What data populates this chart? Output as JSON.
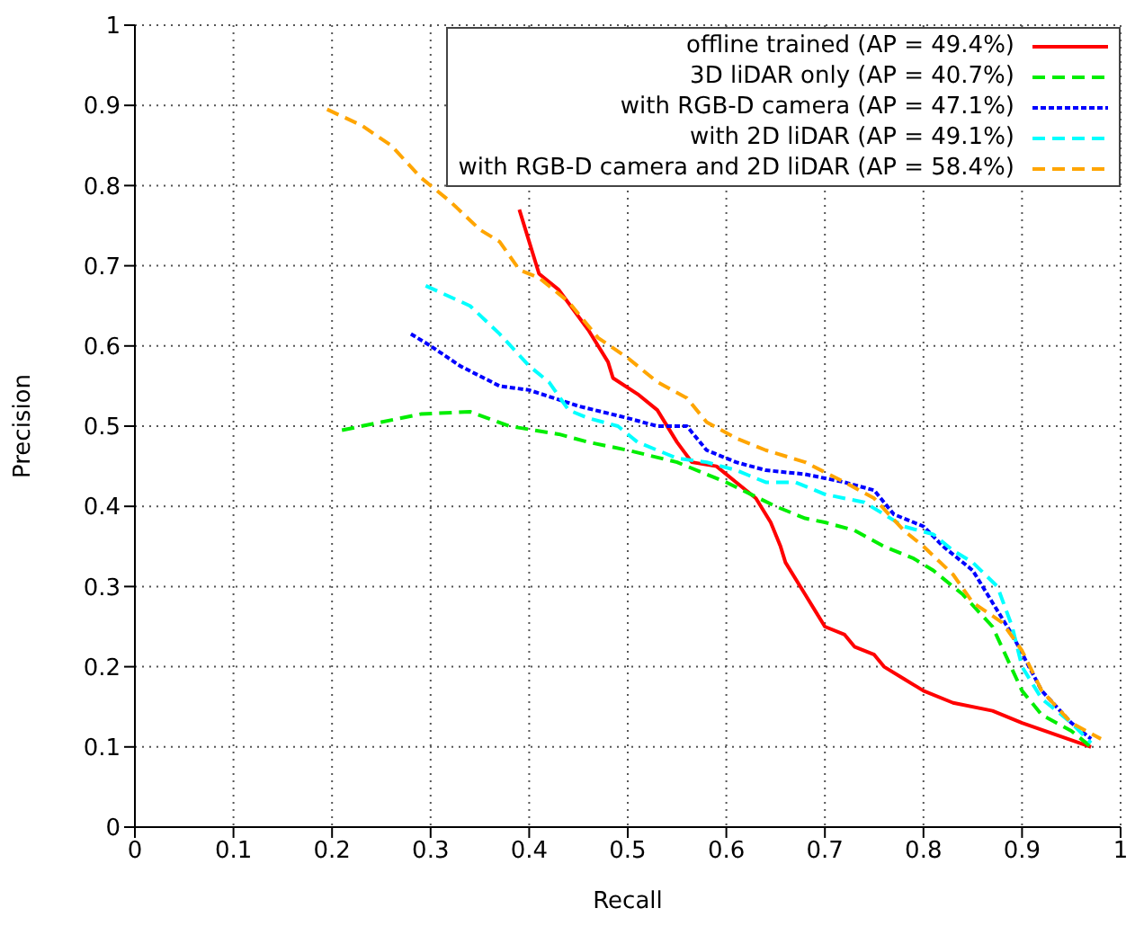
{
  "chart_data": {
    "type": "line",
    "xlabel": "Recall",
    "ylabel": "Precision",
    "xlim": [
      0,
      1
    ],
    "ylim": [
      0,
      1
    ],
    "xticks": [
      0,
      0.1,
      0.2,
      0.3,
      0.4,
      0.5,
      0.6,
      0.7,
      0.8,
      0.9,
      1
    ],
    "yticks": [
      0,
      0.1,
      0.2,
      0.3,
      0.4,
      0.5,
      0.6,
      0.7,
      0.8,
      0.9,
      1
    ],
    "grid": true,
    "legend": "top right",
    "marker": "none",
    "series": [
      {
        "name": "offline trained (AP = 49.4%)",
        "color": "#ff0000",
        "line_style": "solid",
        "x": [
          0.39,
          0.41,
          0.43,
          0.46,
          0.48,
          0.485,
          0.51,
          0.53,
          0.55,
          0.565,
          0.59,
          0.61,
          0.63,
          0.645,
          0.655,
          0.66,
          0.68,
          0.69,
          0.7,
          0.72,
          0.73,
          0.75,
          0.76,
          0.78,
          0.8,
          0.83,
          0.87,
          0.9,
          0.97
        ],
        "values": [
          0.77,
          0.69,
          0.67,
          0.62,
          0.58,
          0.56,
          0.54,
          0.52,
          0.48,
          0.455,
          0.45,
          0.43,
          0.41,
          0.38,
          0.35,
          0.33,
          0.29,
          0.27,
          0.25,
          0.24,
          0.225,
          0.215,
          0.2,
          0.185,
          0.17,
          0.155,
          0.145,
          0.13,
          0.1
        ]
      },
      {
        "name": "3D liDAR only (AP = 40.7%)",
        "color": "#00ee00",
        "line_style": "dashed",
        "x": [
          0.21,
          0.25,
          0.29,
          0.34,
          0.38,
          0.43,
          0.46,
          0.5,
          0.55,
          0.6,
          0.65,
          0.68,
          0.7,
          0.73,
          0.76,
          0.79,
          0.81,
          0.84,
          0.87,
          0.885,
          0.9,
          0.92,
          0.95,
          0.97
        ],
        "values": [
          0.495,
          0.505,
          0.515,
          0.518,
          0.5,
          0.49,
          0.48,
          0.47,
          0.455,
          0.43,
          0.4,
          0.385,
          0.38,
          0.37,
          0.35,
          0.335,
          0.32,
          0.29,
          0.25,
          0.21,
          0.17,
          0.14,
          0.12,
          0.1
        ]
      },
      {
        "name": "with RGB-D camera (AP = 47.1%)",
        "color": "#0000ff",
        "line_style": "dotted",
        "x": [
          0.28,
          0.3,
          0.33,
          0.37,
          0.4,
          0.45,
          0.5,
          0.53,
          0.56,
          0.58,
          0.61,
          0.64,
          0.68,
          0.72,
          0.75,
          0.77,
          0.8,
          0.82,
          0.85,
          0.87,
          0.89,
          0.92,
          0.95,
          0.97
        ],
        "values": [
          0.615,
          0.6,
          0.575,
          0.55,
          0.545,
          0.525,
          0.51,
          0.5,
          0.5,
          0.47,
          0.455,
          0.445,
          0.44,
          0.43,
          0.42,
          0.39,
          0.375,
          0.35,
          0.32,
          0.28,
          0.24,
          0.17,
          0.13,
          0.11
        ]
      },
      {
        "name": "with 2D liDAR (AP = 49.1%)",
        "color": "#00ffff",
        "line_style": "dashed",
        "x": [
          0.295,
          0.34,
          0.37,
          0.4,
          0.42,
          0.44,
          0.46,
          0.49,
          0.51,
          0.55,
          0.58,
          0.61,
          0.64,
          0.67,
          0.7,
          0.74,
          0.78,
          0.81,
          0.83,
          0.85,
          0.875,
          0.89,
          0.9,
          0.92,
          0.95,
          0.97
        ],
        "values": [
          0.675,
          0.65,
          0.615,
          0.575,
          0.555,
          0.52,
          0.51,
          0.5,
          0.48,
          0.46,
          0.455,
          0.445,
          0.43,
          0.43,
          0.415,
          0.405,
          0.375,
          0.365,
          0.345,
          0.33,
          0.3,
          0.25,
          0.2,
          0.16,
          0.13,
          0.105
        ]
      },
      {
        "name": "with RGB-D camera and 2D liDAR (AP = 58.4%)",
        "color": "#ffa500",
        "line_style": "dashed",
        "x": [
          0.195,
          0.23,
          0.26,
          0.29,
          0.32,
          0.35,
          0.37,
          0.39,
          0.41,
          0.44,
          0.47,
          0.5,
          0.53,
          0.56,
          0.58,
          0.61,
          0.64,
          0.68,
          0.72,
          0.75,
          0.78,
          0.8,
          0.83,
          0.85,
          0.88,
          0.9,
          0.92,
          0.95,
          0.98
        ],
        "values": [
          0.895,
          0.875,
          0.85,
          0.81,
          0.78,
          0.745,
          0.73,
          0.695,
          0.685,
          0.655,
          0.61,
          0.585,
          0.555,
          0.535,
          0.505,
          0.485,
          0.47,
          0.455,
          0.43,
          0.41,
          0.37,
          0.35,
          0.315,
          0.28,
          0.255,
          0.22,
          0.17,
          0.13,
          0.11
        ]
      }
    ]
  }
}
